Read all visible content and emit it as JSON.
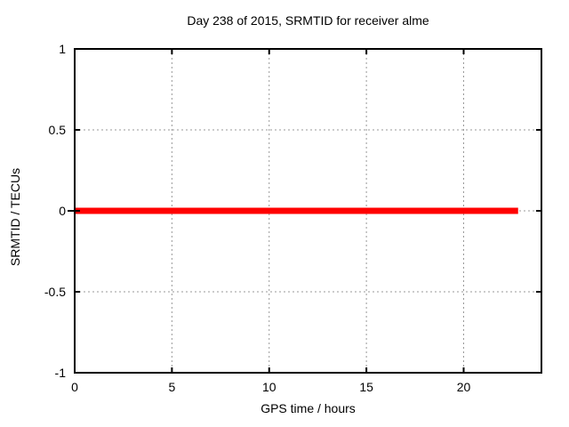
{
  "chart_data": {
    "type": "line",
    "title": "Day 238 of 2015, SRMTID for receiver alme",
    "xlabel": "GPS time / hours",
    "ylabel": "SRMTID / TECUs",
    "xlim": [
      0,
      24
    ],
    "ylim": [
      -1,
      1
    ],
    "xticks": [
      0,
      5,
      10,
      15,
      20
    ],
    "yticks": [
      -1,
      -0.5,
      0,
      0.5,
      1
    ],
    "grid": true,
    "legend": "none",
    "border": "box",
    "series": [
      {
        "name": "SRMTID",
        "color": "#ff0000",
        "linewidth": 7,
        "x": [
          0,
          22.8
        ],
        "y": [
          0,
          0
        ]
      }
    ]
  },
  "colors": {
    "background": "#ffffff",
    "axis": "#000000",
    "grid": "#999999",
    "text": "#000000",
    "series": "#ff0000"
  }
}
